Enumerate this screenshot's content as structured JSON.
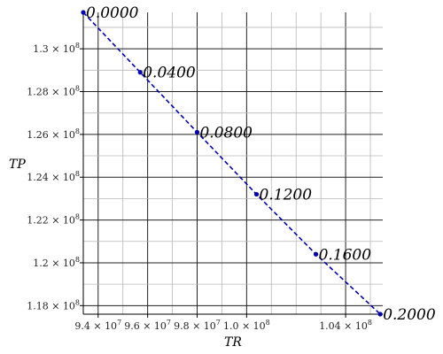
{
  "chart_data": {
    "type": "scatter",
    "xlabel": "TR",
    "ylabel": "TP",
    "xlim": [
      93400000,
      105500000
    ],
    "ylim": [
      117600000,
      131700000
    ],
    "grid": true,
    "major_x_ticks": [
      {
        "value": 94000000,
        "mant": "9.4",
        "exp": "7"
      },
      {
        "value": 96000000,
        "mant": "9.6",
        "exp": "7"
      },
      {
        "value": 98000000,
        "mant": "9.8",
        "exp": "7"
      },
      {
        "value": 100000000,
        "mant": "1.0",
        "exp": "8"
      },
      {
        "value": 104000000,
        "mant": "1.04",
        "exp": "8"
      }
    ],
    "grid_x": [
      94000000,
      95000000,
      96000000,
      97000000,
      98000000,
      99000000,
      100000000,
      101000000,
      102000000,
      103000000,
      104000000,
      105000000
    ],
    "major_y_ticks": [
      {
        "value": 118000000,
        "mant": "1.18",
        "exp": "8"
      },
      {
        "value": 120000000,
        "mant": "1.2",
        "exp": "8"
      },
      {
        "value": 122000000,
        "mant": "1.22",
        "exp": "8"
      },
      {
        "value": 124000000,
        "mant": "1.24",
        "exp": "8"
      },
      {
        "value": 126000000,
        "mant": "1.26",
        "exp": "8"
      },
      {
        "value": 128000000,
        "mant": "1.28",
        "exp": "8"
      },
      {
        "value": 130000000,
        "mant": "1.3",
        "exp": "8"
      }
    ],
    "grid_y": [
      118000000,
      119000000,
      120000000,
      121000000,
      122000000,
      123000000,
      124000000,
      125000000,
      126000000,
      127000000,
      128000000,
      129000000,
      130000000,
      131000000
    ],
    "line_color": "#0000b0",
    "series": [
      {
        "style": "dashed",
        "points": [
          {
            "x": 93400000,
            "y": 131700000,
            "label": "0.0000"
          },
          {
            "x": 95700000,
            "y": 128900000,
            "label": "0.0400"
          },
          {
            "x": 98000000,
            "y": 126100000,
            "label": "0.0800"
          },
          {
            "x": 100400000,
            "y": 123200000,
            "label": "0.1200"
          },
          {
            "x": 102800000,
            "y": 120400000,
            "label": "0.1600"
          },
          {
            "x": 105400000,
            "y": 117600000,
            "label": "0.2000"
          }
        ]
      }
    ]
  }
}
